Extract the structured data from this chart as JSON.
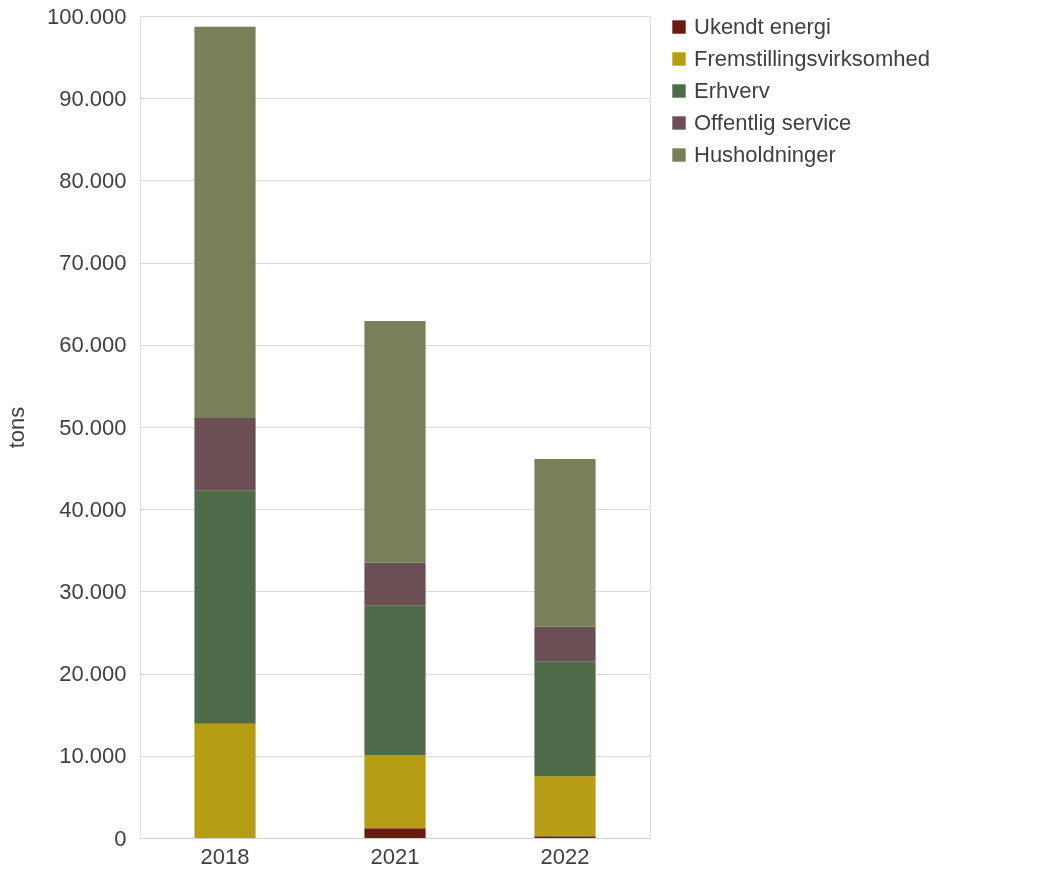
{
  "chart_data": {
    "type": "bar",
    "stacked": true,
    "ylabel": "tons",
    "categories": [
      "2018",
      "2021",
      "2022"
    ],
    "series": [
      {
        "name": "Ukendt energi",
        "color": "#6b1a10",
        "values": [
          0,
          1200,
          200
        ]
      },
      {
        "name": "Fremstillingsvirksomhed",
        "color": "#b59e13",
        "values": [
          13900,
          8900,
          7300
        ]
      },
      {
        "name": "Erhverv",
        "color": "#4f6b48",
        "values": [
          28400,
          18200,
          14000
        ]
      },
      {
        "name": "Offentlig service",
        "color": "#6b4f55",
        "values": [
          8800,
          5200,
          4200
        ]
      },
      {
        "name": "Husholdninger",
        "color": "#778059",
        "values": [
          47600,
          29400,
          20400
        ]
      }
    ],
    "ylim": [
      0,
      100000
    ],
    "yticks": [
      {
        "value": 0,
        "label": "0"
      },
      {
        "value": 10000,
        "label": "10.000"
      },
      {
        "value": 20000,
        "label": "20.000"
      },
      {
        "value": 30000,
        "label": "30.000"
      },
      {
        "value": 40000,
        "label": "40.000"
      },
      {
        "value": 50000,
        "label": "50.000"
      },
      {
        "value": 60000,
        "label": "60.000"
      },
      {
        "value": 70000,
        "label": "70.000"
      },
      {
        "value": 80000,
        "label": "80.000"
      },
      {
        "value": 90000,
        "label": "90.000"
      },
      {
        "value": 100000,
        "label": "100.000"
      }
    ],
    "grid": "y",
    "legend": "right"
  }
}
